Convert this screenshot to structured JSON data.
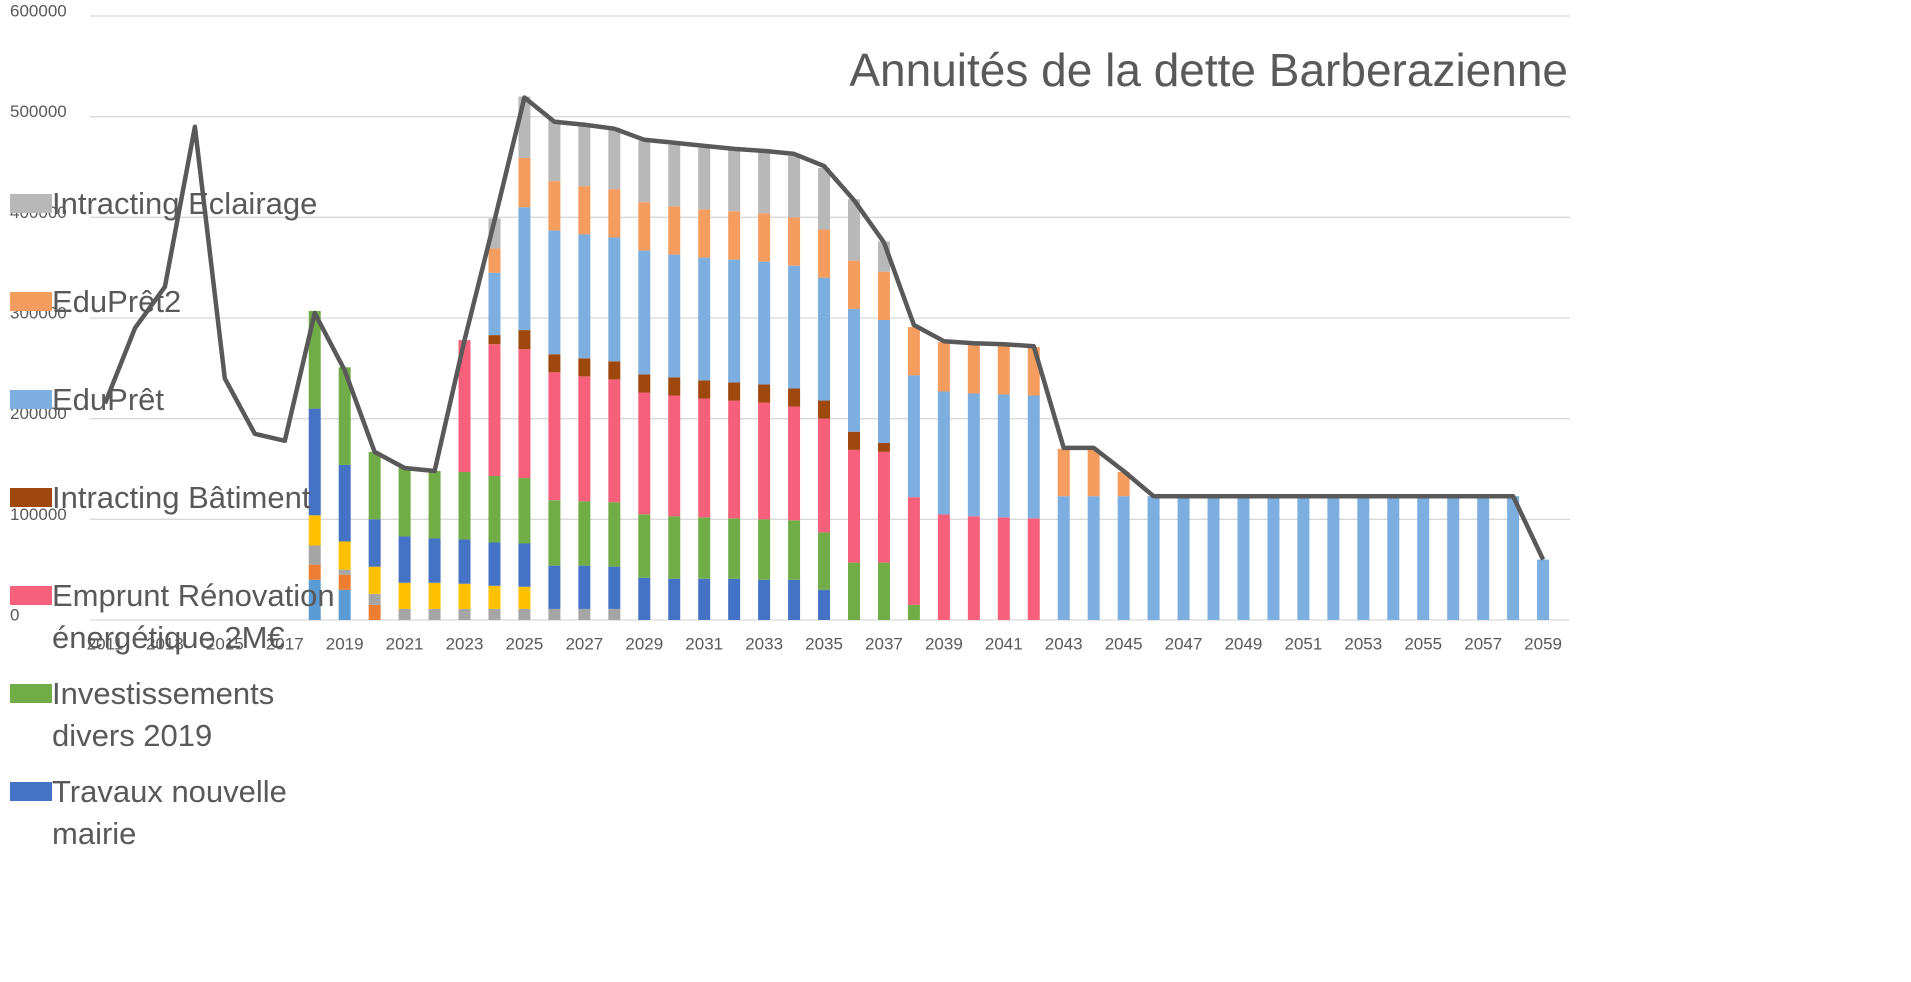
{
  "chart_data": {
    "type": "bar",
    "stacked": true,
    "title": "Annuités de la dette Barberazienne",
    "categories": [
      "2011",
      null,
      "2013",
      null,
      "2015",
      null,
      "2017",
      null,
      "2019",
      null,
      "2021",
      null,
      "2023",
      null,
      "2025",
      null,
      "2027",
      null,
      "2029",
      null,
      "2031",
      null,
      "2033",
      null,
      "2035",
      null,
      "2037",
      null,
      "2039",
      null,
      "2041",
      null,
      "2043",
      null,
      "2045",
      null,
      "2047",
      null,
      "2049",
      null,
      "2051",
      null,
      "2053",
      null,
      "2055",
      null,
      "2057",
      null,
      "2059"
    ],
    "ylim": [
      0,
      600000
    ],
    "yticks": [
      0,
      100000,
      200000,
      300000,
      400000,
      500000,
      600000
    ],
    "grid": true,
    "legend": "left",
    "series": [
      {
        "color": "#5b9bd5",
        "values": [
          null,
          null,
          null,
          null,
          null,
          null,
          null,
          40000,
          30000,
          null,
          null,
          null,
          null,
          null,
          null,
          null,
          null,
          null,
          null,
          null,
          null,
          null,
          null,
          null,
          null,
          null,
          null,
          null,
          null,
          null,
          null,
          null,
          null,
          null,
          null,
          null,
          null,
          null,
          null,
          null,
          null,
          null,
          null,
          null,
          null,
          null,
          null,
          null,
          null
        ]
      },
      {
        "color": "#ed7d31",
        "values": [
          null,
          null,
          null,
          null,
          null,
          null,
          null,
          15000,
          15000,
          15000,
          null,
          null,
          null,
          null,
          null,
          null,
          null,
          null,
          null,
          null,
          null,
          null,
          null,
          null,
          null,
          null,
          null,
          null,
          null,
          null,
          null,
          null,
          null,
          null,
          null,
          null,
          null,
          null,
          null,
          null,
          null,
          null,
          null,
          null,
          null,
          null,
          null,
          null,
          null
        ]
      },
      {
        "color": "#a5a5a5",
        "values": [
          null,
          null,
          null,
          null,
          null,
          null,
          null,
          19000,
          5000,
          11000,
          11000,
          11000,
          11000,
          11000,
          11000,
          11000,
          11000,
          11000,
          null,
          null,
          null,
          null,
          null,
          null,
          null,
          null,
          null,
          null,
          null,
          null,
          null,
          null,
          null,
          null,
          null,
          null,
          null,
          null,
          null,
          null,
          null,
          null,
          null,
          null,
          null,
          null,
          null,
          null,
          null
        ]
      },
      {
        "color": "#ffc000",
        "values": [
          null,
          null,
          null,
          null,
          null,
          null,
          null,
          30000,
          28000,
          27000,
          26000,
          26000,
          25000,
          23000,
          22000,
          null,
          null,
          null,
          null,
          null,
          null,
          null,
          null,
          null,
          null,
          null,
          null,
          null,
          null,
          null,
          null,
          null,
          null,
          null,
          null,
          null,
          null,
          null,
          null,
          null,
          null,
          null,
          null,
          null,
          null,
          null,
          null,
          null,
          null
        ]
      },
      {
        "name": "Travaux nouvelle mairie",
        "color": "#4472c4",
        "values": [
          null,
          null,
          null,
          null,
          null,
          null,
          null,
          106000,
          76000,
          47000,
          46000,
          44000,
          44000,
          43000,
          43000,
          43000,
          43000,
          42000,
          42000,
          41000,
          41000,
          41000,
          40000,
          40000,
          30000,
          null,
          null,
          null,
          null,
          null,
          null,
          null,
          null,
          null,
          null,
          null,
          null,
          null,
          null,
          null,
          null,
          null,
          null,
          null,
          null,
          null,
          null,
          null,
          null
        ]
      },
      {
        "name": "Investissements divers 2019",
        "color": "#70ad47",
        "values": [
          null,
          null,
          null,
          null,
          null,
          null,
          null,
          97000,
          97000,
          67000,
          69000,
          67000,
          67000,
          66000,
          65000,
          65000,
          64000,
          64000,
          63000,
          62000,
          61000,
          60000,
          60000,
          59000,
          57000,
          57000,
          57000,
          15000,
          null,
          null,
          null,
          null,
          null,
          null,
          null,
          null,
          null,
          null,
          null,
          null,
          null,
          null,
          null,
          null,
          null,
          null,
          null,
          null,
          null
        ]
      },
      {
        "name": "Emprunt Rénovation énergétique 2M€",
        "color": "#f6607b",
        "values": [
          null,
          null,
          null,
          null,
          null,
          null,
          null,
          null,
          null,
          null,
          null,
          null,
          131000,
          131000,
          128000,
          127000,
          124000,
          122000,
          121000,
          120000,
          118000,
          117000,
          116000,
          113000,
          113000,
          112000,
          110000,
          107000,
          105000,
          103000,
          102000,
          101000,
          null,
          null,
          null,
          null,
          null,
          null,
          null,
          null,
          null,
          null,
          null,
          null,
          null,
          null,
          null,
          null,
          null
        ]
      },
      {
        "name": "Intracting Bâtiment",
        "color": "#9e480e",
        "values": [
          null,
          null,
          null,
          null,
          null,
          null,
          null,
          null,
          null,
          null,
          null,
          null,
          null,
          9000,
          19000,
          18000,
          18000,
          18000,
          18000,
          18000,
          18000,
          18000,
          18000,
          18000,
          18000,
          18000,
          9000,
          null,
          null,
          null,
          null,
          null,
          null,
          null,
          null,
          null,
          null,
          null,
          null,
          null,
          null,
          null,
          null,
          null,
          null,
          null,
          null,
          null,
          null
        ]
      },
      {
        "name": "EduPrêt",
        "color": "#7cafdf",
        "values": [
          null,
          null,
          null,
          null,
          null,
          null,
          null,
          null,
          null,
          null,
          null,
          null,
          null,
          62000,
          122000,
          123000,
          123000,
          123000,
          123000,
          122000,
          122000,
          122000,
          122000,
          122000,
          122000,
          122000,
          122000,
          121000,
          122000,
          122000,
          122000,
          122000,
          123000,
          123000,
          123000,
          123000,
          123000,
          123000,
          123000,
          123000,
          123000,
          123000,
          123000,
          123000,
          123000,
          123000,
          123000,
          123000,
          60000
        ]
      },
      {
        "name": "EduPrêt2",
        "color": "#f59c5f",
        "values": [
          null,
          null,
          null,
          null,
          null,
          null,
          null,
          null,
          null,
          null,
          null,
          null,
          null,
          24000,
          49000,
          49000,
          48000,
          48000,
          48000,
          48000,
          48000,
          48000,
          48000,
          48000,
          48000,
          48000,
          48000,
          48000,
          49000,
          48000,
          48000,
          48000,
          47000,
          47000,
          24000,
          null,
          null,
          null,
          null,
          null,
          null,
          null,
          null,
          null,
          null,
          null,
          null,
          null,
          null
        ]
      },
      {
        "name": "Intracting Eclairage",
        "color": "#b8b8b8",
        "values": [
          null,
          null,
          null,
          null,
          null,
          null,
          null,
          null,
          null,
          null,
          null,
          null,
          null,
          30000,
          61000,
          61000,
          61000,
          61000,
          61000,
          61000,
          61000,
          61000,
          61000,
          61000,
          61000,
          61000,
          30000,
          null,
          null,
          null,
          null,
          null,
          null,
          null,
          null,
          null,
          null,
          null,
          null,
          null,
          null,
          null,
          null,
          null,
          null,
          null,
          null,
          null,
          null
        ]
      },
      {
        "type": "line",
        "color": "#595959",
        "values": [
          215000,
          290000,
          331000,
          490000,
          240000,
          185000,
          178000,
          305000,
          248000,
          167000,
          151000,
          148000,
          278000,
          397000,
          519000,
          495000,
          492000,
          488000,
          477000,
          474000,
          471000,
          468000,
          466000,
          463000,
          451000,
          417000,
          375000,
          293000,
          277000,
          275000,
          274000,
          272000,
          171000,
          171000,
          148000,
          123000,
          123000,
          123000,
          123000,
          123000,
          123000,
          123000,
          123000,
          123000,
          123000,
          123000,
          123000,
          123000,
          60000
        ]
      }
    ]
  }
}
